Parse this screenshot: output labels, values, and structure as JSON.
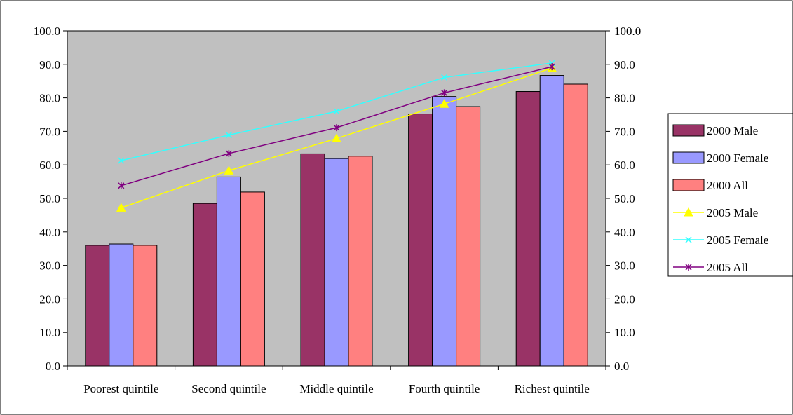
{
  "chart_data": {
    "type": "bar",
    "categories": [
      "Poorest quintile",
      "Second quintile",
      "Middle quintile",
      "Fourth quintile",
      "Richest quintile"
    ],
    "series": [
      {
        "name": "2000 Male",
        "kind": "bar",
        "color": "#993366",
        "values": [
          36.0,
          48.5,
          63.3,
          75.2,
          81.9
        ]
      },
      {
        "name": "2000 Female",
        "kind": "bar",
        "color": "#9999FF",
        "values": [
          36.4,
          56.4,
          61.9,
          80.4,
          86.7
        ]
      },
      {
        "name": "2000 All",
        "kind": "bar",
        "color": "#FF8080",
        "values": [
          36.0,
          51.9,
          62.6,
          77.4,
          84.1
        ]
      },
      {
        "name": "2005 Male",
        "kind": "line",
        "color": "#FFFF00",
        "marker": "triangle",
        "values": [
          47.2,
          58.3,
          67.9,
          78.2,
          88.9
        ]
      },
      {
        "name": "2005 Female",
        "kind": "line",
        "color": "#33FFFF",
        "marker": "x",
        "values": [
          61.3,
          68.9,
          76.0,
          86.1,
          90.4
        ]
      },
      {
        "name": "2005 All",
        "kind": "line",
        "color": "#800080",
        "marker": "star",
        "values": [
          53.8,
          63.4,
          71.1,
          81.5,
          89.3
        ]
      }
    ],
    "ylim": [
      0,
      100
    ],
    "yticks": [
      "0.0",
      "10.0",
      "20.0",
      "30.0",
      "40.0",
      "50.0",
      "60.0",
      "70.0",
      "80.0",
      "90.0",
      "100.0"
    ],
    "secondary_yticks": [
      "0.0",
      "10.0",
      "20.0",
      "30.0",
      "40.0",
      "50.0",
      "60.0",
      "70.0",
      "80.0",
      "90.0",
      "100.0"
    ],
    "title": "",
    "xlabel": "",
    "ylabel": "",
    "grid": false,
    "plot_background": "#C0C0C0",
    "legend": "right"
  }
}
